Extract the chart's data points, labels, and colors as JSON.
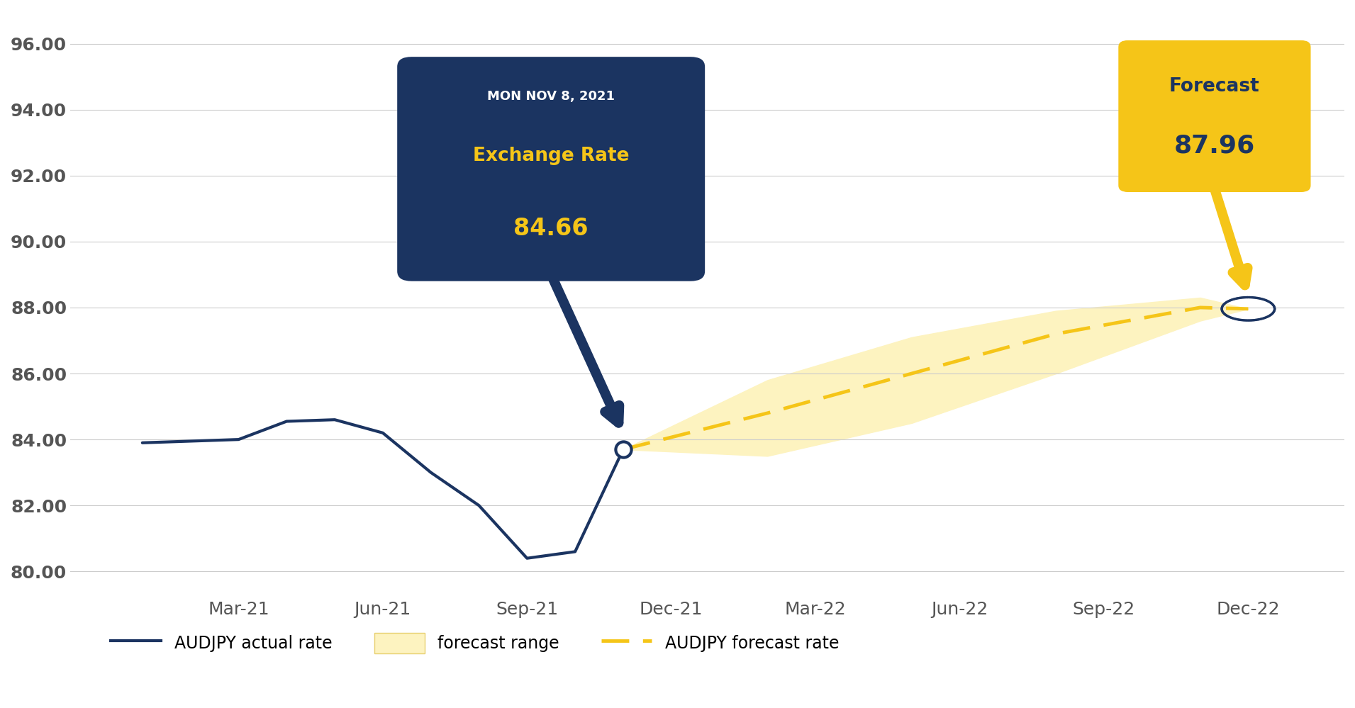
{
  "actual_color": "#1b3461",
  "forecast_color": "#f5c518",
  "range_color": "#fdf3c0",
  "box_color": "#1b3461",
  "box_text_color": "#f5c518",
  "forecast_box_color": "#f5c518",
  "forecast_box_text_color": "#1b3461",
  "grid_color": "#cccccc",
  "bg_color": "#ffffff",
  "annotation_date": "MON NOV 8, 2021",
  "annotation_label": "Exchange Rate",
  "annotation_value": "84.66",
  "forecast_label": "Forecast",
  "forecast_value": "87.96",
  "ylim_min": 79.2,
  "ylim_max": 97.0,
  "yticks": [
    80.0,
    82.0,
    84.0,
    86.0,
    88.0,
    90.0,
    92.0,
    94.0,
    96.0
  ],
  "legend_actual": "AUDJPY actual rate",
  "legend_range": "forecast range",
  "legend_forecast": "AUDJPY forecast rate"
}
